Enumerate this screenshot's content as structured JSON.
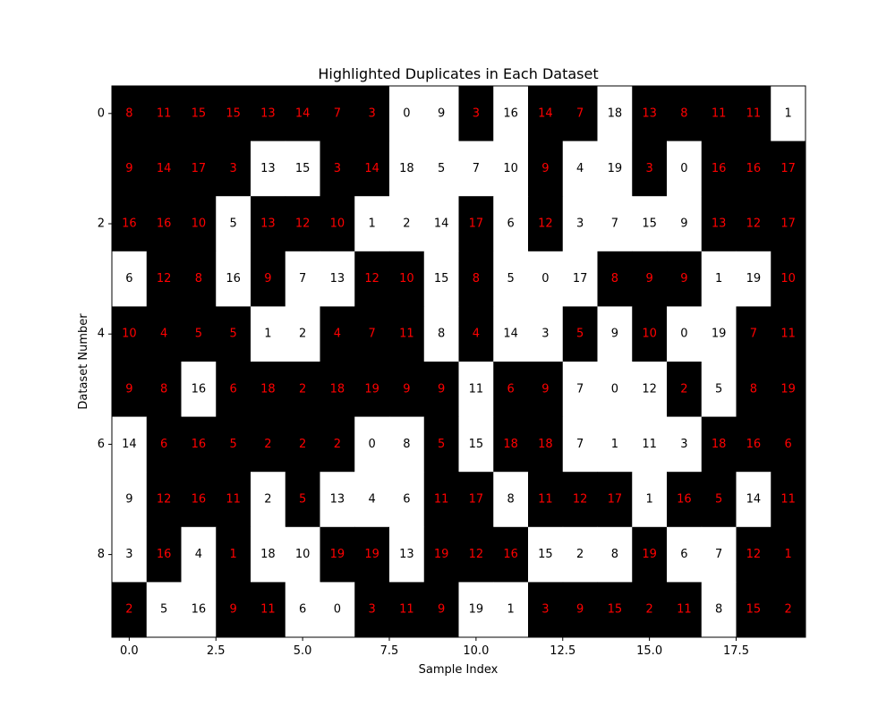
{
  "chart_data": {
    "type": "heatmap",
    "title": "Highlighted Duplicates in Each Dataset",
    "xlabel": "Sample Index",
    "ylabel": "Dataset Number",
    "xlim": [
      -0.5,
      19.5
    ],
    "ylim": [
      9.5,
      -0.5
    ],
    "x_ticks": [
      0.0,
      2.5,
      5.0,
      7.5,
      10.0,
      12.5,
      15.0,
      17.5
    ],
    "x_tick_labels": [
      "0.0",
      "2.5",
      "5.0",
      "7.5",
      "10.0",
      "12.5",
      "15.0",
      "17.5"
    ],
    "y_ticks": [
      0,
      2,
      4,
      6,
      8
    ],
    "y_tick_labels": [
      "0",
      "2",
      "4",
      "6",
      "8"
    ],
    "grid": false,
    "colors": {
      "duplicate_cell": "#000000",
      "unique_cell": "#ffffff",
      "duplicate_text": "#ff0000",
      "unique_text": "#000000"
    },
    "values": [
      [
        8,
        11,
        15,
        15,
        13,
        14,
        7,
        3,
        0,
        9,
        3,
        16,
        14,
        7,
        18,
        13,
        8,
        11,
        11,
        1
      ],
      [
        9,
        14,
        17,
        3,
        13,
        15,
        3,
        14,
        18,
        5,
        7,
        10,
        9,
        4,
        19,
        3,
        0,
        16,
        16,
        17
      ],
      [
        16,
        16,
        10,
        5,
        13,
        12,
        10,
        1,
        2,
        14,
        17,
        6,
        12,
        3,
        7,
        15,
        9,
        13,
        12,
        17
      ],
      [
        6,
        12,
        8,
        16,
        9,
        7,
        13,
        12,
        10,
        15,
        8,
        5,
        0,
        17,
        8,
        9,
        9,
        1,
        19,
        10
      ],
      [
        10,
        4,
        5,
        5,
        1,
        2,
        4,
        7,
        11,
        8,
        4,
        14,
        3,
        5,
        9,
        10,
        0,
        19,
        7,
        11
      ],
      [
        9,
        8,
        16,
        6,
        18,
        2,
        18,
        19,
        9,
        9,
        11,
        6,
        9,
        7,
        0,
        12,
        2,
        5,
        8,
        19
      ],
      [
        14,
        6,
        16,
        5,
        2,
        2,
        2,
        0,
        8,
        5,
        15,
        18,
        18,
        7,
        1,
        11,
        3,
        18,
        16,
        6
      ],
      [
        9,
        12,
        16,
        11,
        2,
        5,
        13,
        4,
        6,
        11,
        17,
        8,
        11,
        12,
        17,
        1,
        16,
        5,
        14,
        11
      ],
      [
        3,
        16,
        4,
        1,
        18,
        10,
        19,
        19,
        13,
        19,
        12,
        16,
        15,
        2,
        8,
        19,
        6,
        7,
        12,
        1
      ],
      [
        2,
        5,
        16,
        9,
        11,
        6,
        0,
        3,
        11,
        9,
        19,
        1,
        3,
        9,
        15,
        2,
        11,
        8,
        15,
        2
      ]
    ],
    "duplicate": [
      [
        1,
        1,
        1,
        1,
        1,
        1,
        1,
        1,
        0,
        0,
        1,
        0,
        1,
        1,
        0,
        1,
        1,
        1,
        1,
        0
      ],
      [
        1,
        1,
        1,
        1,
        0,
        0,
        1,
        1,
        0,
        0,
        0,
        0,
        1,
        0,
        0,
        1,
        0,
        1,
        1,
        1
      ],
      [
        1,
        1,
        1,
        0,
        1,
        1,
        1,
        0,
        0,
        0,
        1,
        0,
        1,
        0,
        0,
        0,
        0,
        1,
        1,
        1
      ],
      [
        0,
        1,
        1,
        0,
        1,
        0,
        0,
        1,
        1,
        0,
        1,
        0,
        0,
        0,
        1,
        1,
        1,
        0,
        0,
        1
      ],
      [
        1,
        1,
        1,
        1,
        0,
        0,
        1,
        1,
        1,
        0,
        1,
        0,
        0,
        1,
        0,
        1,
        0,
        0,
        1,
        1
      ],
      [
        1,
        1,
        0,
        1,
        1,
        1,
        1,
        1,
        1,
        1,
        0,
        1,
        1,
        0,
        0,
        0,
        1,
        0,
        1,
        1
      ],
      [
        0,
        1,
        1,
        1,
        1,
        1,
        1,
        0,
        0,
        1,
        0,
        1,
        1,
        0,
        0,
        0,
        0,
        1,
        1,
        1
      ],
      [
        0,
        1,
        1,
        1,
        0,
        1,
        0,
        0,
        0,
        1,
        1,
        0,
        1,
        1,
        1,
        0,
        1,
        1,
        0,
        1
      ],
      [
        0,
        1,
        0,
        1,
        0,
        0,
        1,
        1,
        0,
        1,
        1,
        1,
        0,
        0,
        0,
        1,
        0,
        0,
        1,
        1
      ],
      [
        1,
        0,
        0,
        1,
        1,
        0,
        0,
        1,
        1,
        1,
        0,
        0,
        1,
        1,
        1,
        1,
        1,
        0,
        1,
        1
      ]
    ]
  }
}
